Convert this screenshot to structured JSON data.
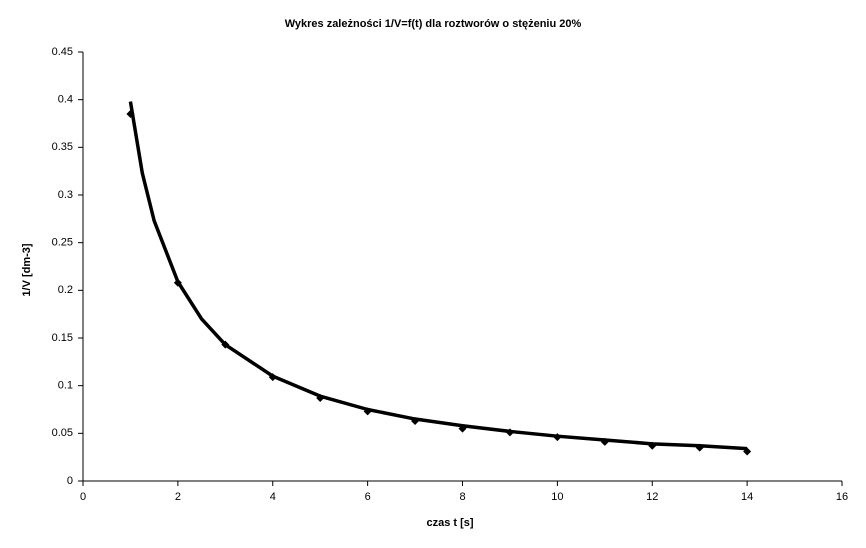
{
  "chart_data": {
    "type": "scatter",
    "title": "Wykres zależności 1/V=f(t) dla roztworów o stężeniu 20%",
    "x_label": "czas t [s]",
    "y_label": "1/V [dm-3]",
    "xlim": [
      0,
      16
    ],
    "xticks": [
      0,
      2,
      4,
      6,
      8,
      10,
      12,
      14,
      16
    ],
    "ylim": [
      0,
      0.45
    ],
    "yticks": [
      0,
      0.05,
      0.1,
      0.15,
      0.2,
      0.25,
      0.3,
      0.35,
      0.4,
      0.45
    ],
    "grid": false,
    "series": [
      {
        "color": "#000000",
        "marker": "diamond",
        "x": [
          1,
          2,
          3,
          4,
          5,
          6,
          7,
          8,
          9,
          10,
          11,
          12,
          13,
          14
        ],
        "values": [
          0.385,
          0.208,
          0.143,
          0.109,
          0.087,
          0.073,
          0.063,
          0.055,
          0.051,
          0.046,
          0.041,
          0.037,
          0.035,
          0.031
        ]
      },
      {
        "color": "#000000",
        "marker": "line",
        "x": [
          1,
          1.25,
          1.5,
          2,
          2.5,
          3,
          4,
          5,
          6,
          7,
          8,
          9,
          10,
          11,
          12,
          13,
          14
        ],
        "values": [
          0.398,
          0.323,
          0.273,
          0.209,
          0.17,
          0.143,
          0.11,
          0.089,
          0.075,
          0.065,
          0.058,
          0.052,
          0.047,
          0.043,
          0.039,
          0.037,
          0.034
        ]
      }
    ]
  }
}
